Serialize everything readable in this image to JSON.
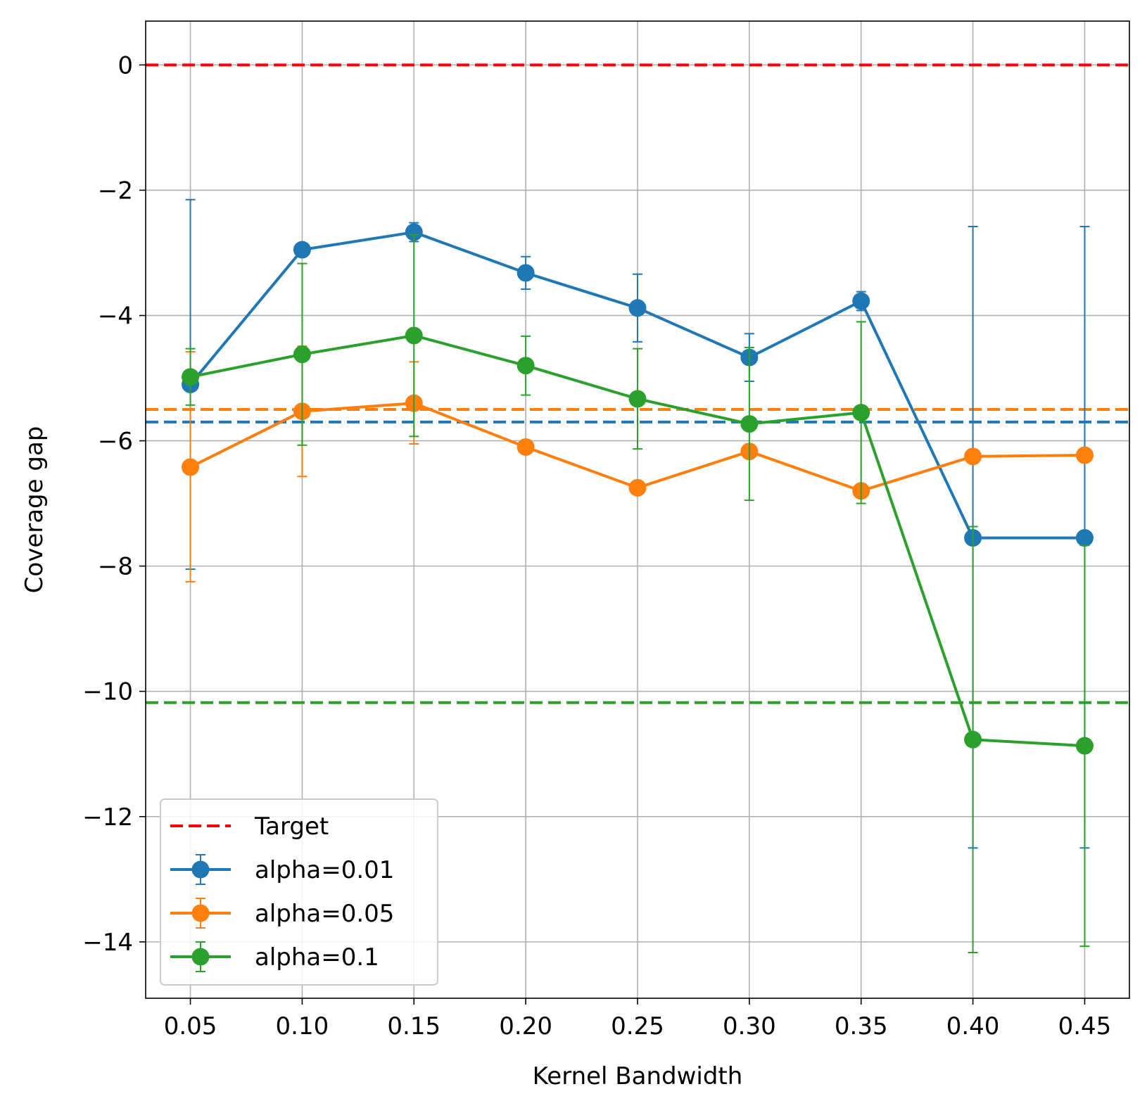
{
  "chart_data": {
    "type": "line",
    "xlabel": "Kernel Bandwidth",
    "ylabel": "Coverage gap",
    "x": [
      0.05,
      0.1,
      0.15,
      0.2,
      0.25,
      0.3,
      0.35,
      0.4,
      0.45
    ],
    "x_tick_labels": [
      "0.05",
      "0.10",
      "0.15",
      "0.20",
      "0.25",
      "0.30",
      "0.35",
      "0.40",
      "0.45"
    ],
    "y_ticks": [
      0,
      -2,
      -4,
      -6,
      -8,
      -10,
      -12,
      -14
    ],
    "y_tick_labels": [
      "0",
      "−2",
      "−4",
      "−6",
      "−8",
      "−10",
      "−12",
      "−14"
    ],
    "xlim": [
      0.03,
      0.47
    ],
    "ylim": [
      -14.9,
      0.7
    ],
    "grid": true,
    "legend_position": "lower-left",
    "target": {
      "name": "Target",
      "value": 0,
      "color": "#ff0000",
      "style": "dashed"
    },
    "series": [
      {
        "name": "alpha=0.01",
        "color": "#1f77b4",
        "values": [
          -5.1,
          -2.95,
          -2.67,
          -3.32,
          -3.88,
          -4.67,
          -3.77,
          -7.55,
          -7.55
        ],
        "err_low": [
          -8.05,
          -3.0,
          -2.82,
          -3.58,
          -4.42,
          -5.05,
          -3.92,
          -12.5,
          -12.5
        ],
        "err_high": [
          -2.15,
          -2.88,
          -2.52,
          -3.06,
          -3.34,
          -4.29,
          -3.62,
          -2.58,
          -2.58
        ],
        "mean_line": -5.7
      },
      {
        "name": "alpha=0.05",
        "color": "#ff7f0e",
        "values": [
          -6.42,
          -5.53,
          -5.4,
          -6.1,
          -6.75,
          -6.17,
          -6.8,
          -6.25,
          -6.23
        ],
        "err_low": [
          -8.25,
          -6.57,
          -6.05,
          -6.15,
          -6.8,
          -6.22,
          -6.85,
          -6.35,
          -6.28
        ],
        "err_high": [
          -4.58,
          -4.49,
          -4.74,
          -6.05,
          -6.7,
          -6.12,
          -6.75,
          -6.15,
          -6.18
        ],
        "mean_line": -5.5
      },
      {
        "name": "alpha=0.1",
        "color": "#2ca02c",
        "values": [
          -4.98,
          -4.62,
          -4.32,
          -4.8,
          -5.33,
          -5.73,
          -5.55,
          -10.77,
          -10.87
        ],
        "err_low": [
          -5.43,
          -6.07,
          -5.93,
          -5.27,
          -6.13,
          -6.95,
          -7.0,
          -14.17,
          -14.07
        ],
        "err_high": [
          -4.53,
          -3.17,
          -2.71,
          -4.33,
          -4.53,
          -4.51,
          -4.1,
          -7.37,
          -7.67
        ],
        "mean_line": -10.18
      }
    ]
  }
}
